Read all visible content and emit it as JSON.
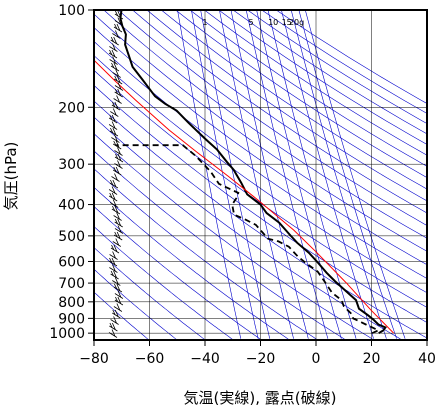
{
  "chart_data": {
    "type": "line",
    "title": "",
    "xlabel": "気温(実線), 露点(破線)",
    "ylabel": "気圧(hPa)",
    "xlim": [
      -80,
      40
    ],
    "ylim": [
      1050,
      100
    ],
    "y_scale": "log",
    "x_ticks": [
      -80,
      -60,
      -40,
      -20,
      0,
      20,
      40
    ],
    "x_tick_labels": [
      "−80",
      "−60",
      "−40",
      "−20",
      "0",
      "20",
      "40"
    ],
    "y_ticks": [
      100,
      200,
      300,
      400,
      500,
      600,
      700,
      800,
      900,
      1000
    ],
    "y_tick_labels": [
      "100",
      "200",
      "300",
      "400",
      "500",
      "600",
      "700",
      "800",
      "900",
      "1000"
    ],
    "grid": true,
    "mixing_ratio_labels": [
      "1",
      "5",
      "10",
      "15",
      "20g"
    ],
    "colors": {
      "temperature": "#000000",
      "dewpoint": "#000000",
      "parcel": "#ff0000",
      "background_lines": "#0000cc",
      "grid": "#000000"
    },
    "series": [
      {
        "key": "temperature",
        "style": "solid",
        "points": [
          [
            22.6,
            1000
          ],
          [
            24.3,
            980
          ],
          [
            25.0,
            960
          ],
          [
            22.5,
            940
          ],
          [
            20.8,
            910
          ],
          [
            18.7,
            880
          ],
          [
            15.5,
            840
          ],
          [
            14.4,
            790
          ],
          [
            10.7,
            740
          ],
          [
            6.8,
            690
          ],
          [
            3.8,
            650
          ],
          [
            0.7,
            605
          ],
          [
            -2.5,
            565
          ],
          [
            -6.8,
            525
          ],
          [
            -9.5,
            495
          ],
          [
            -13.3,
            455
          ],
          [
            -17.8,
            425
          ],
          [
            -20.0,
            400
          ],
          [
            -24.8,
            372
          ],
          [
            -27.0,
            342
          ],
          [
            -29.7,
            312
          ],
          [
            -32.0,
            296
          ],
          [
            -35.7,
            270
          ],
          [
            -40.0,
            250
          ],
          [
            -46.0,
            223
          ],
          [
            -50.2,
            205
          ],
          [
            -54.4,
            195
          ],
          [
            -58.0,
            185
          ],
          [
            -62.8,
            163
          ],
          [
            -66.1,
            150
          ],
          [
            -67.5,
            138
          ],
          [
            -68.8,
            128
          ],
          [
            -68.5,
            119
          ],
          [
            -69.8,
            112
          ],
          [
            -70.5,
            106
          ],
          [
            -70.1,
            100
          ]
        ]
      },
      {
        "key": "dewpoint",
        "style": "dashed",
        "points": [
          [
            20.2,
            1000
          ],
          [
            22.5,
            980
          ],
          [
            18.0,
            940
          ],
          [
            13.4,
            900
          ],
          [
            12.7,
            870
          ],
          [
            10.0,
            825
          ],
          [
            9.2,
            790
          ],
          [
            5.8,
            750
          ],
          [
            3.0,
            690
          ],
          [
            0.6,
            645
          ],
          [
            -3.3,
            610
          ],
          [
            -6.5,
            580
          ],
          [
            -9.8,
            540
          ],
          [
            -13.5,
            520
          ],
          [
            -17.3,
            510
          ],
          [
            -21.7,
            462
          ],
          [
            -25.5,
            445
          ],
          [
            -29.5,
            430
          ],
          [
            -30.2,
            400
          ],
          [
            -28.7,
            382
          ],
          [
            -28.0,
            368
          ],
          [
            -35.0,
            345
          ],
          [
            -38.0,
            316
          ],
          [
            -43.5,
            282
          ],
          [
            -48.0,
            262
          ],
          [
            -72.0,
            262
          ]
        ]
      },
      {
        "key": "parcel",
        "style": "solid",
        "points": [
          [
            28.0,
            1000
          ],
          [
            19.9,
            850
          ],
          [
            11.0,
            700
          ],
          [
            0.0,
            560
          ],
          [
            -8.0,
            480
          ],
          [
            -20.5,
            390
          ],
          [
            -31.0,
            330
          ],
          [
            -43.0,
            275
          ],
          [
            -53.0,
            235
          ],
          [
            -65.0,
            190
          ],
          [
            -72.0,
            167
          ],
          [
            -80.0,
            143
          ]
        ]
      }
    ]
  }
}
